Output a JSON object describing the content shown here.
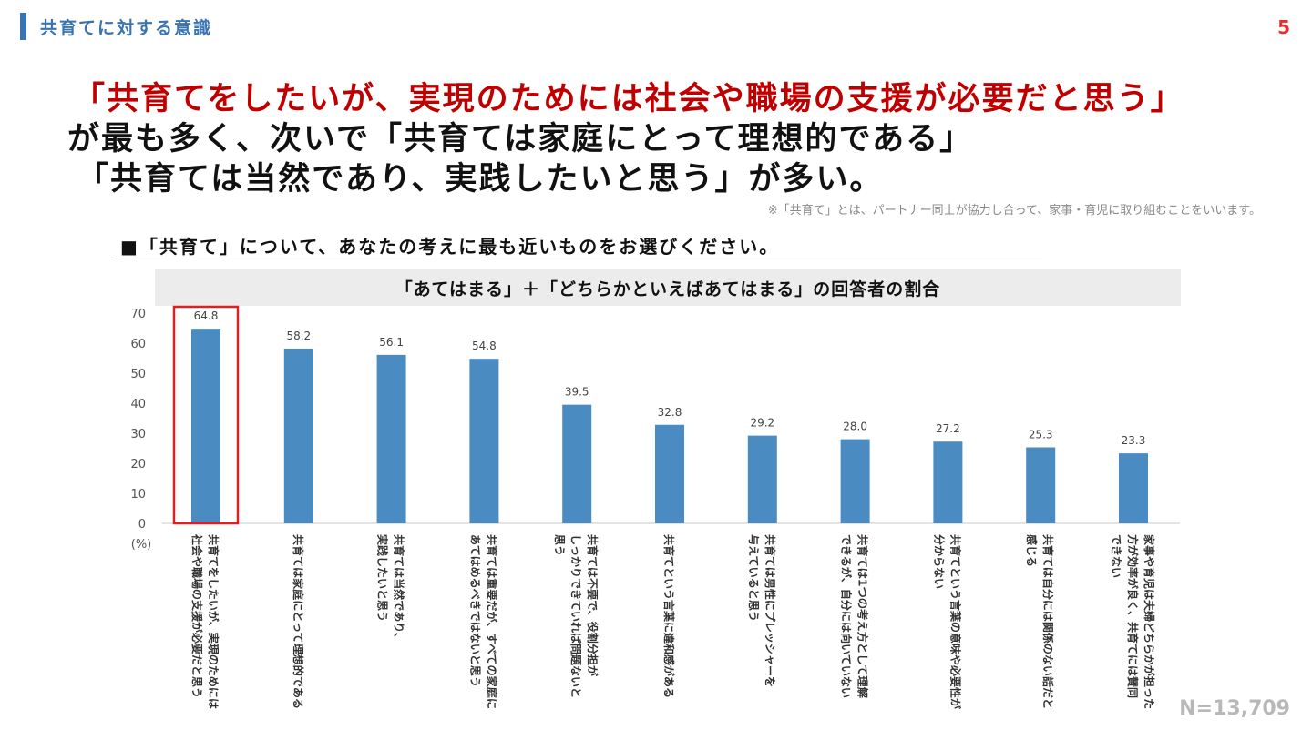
{
  "header": {
    "section_title": "共育てに対する意識",
    "page_number": "5"
  },
  "headline": {
    "line1": "「共育てをしたいが、実現のためには社会や職場の支援が必要だと思う」",
    "line2": "が最も多く、次いで「共育ては家庭にとって理想的である」",
    "line3": "「共育ては当然であり、実践したいと思う」が多い。"
  },
  "note": "※「共育て」とは、パートナー同士が協力し合って、家事・育児に取り組むことをいいます。",
  "question": "■「共育て」について、あなたの考えに最も近いものをお選びください。",
  "sample_size": "N=13,709",
  "colors": {
    "bar": "#4a8bc2",
    "highlight": "#e02020",
    "accent": "#3a74b0",
    "headline_red": "#c00000"
  },
  "chart_data": {
    "type": "bar",
    "title": "「あてはまる」＋「どちらかといえばあてはまる」の回答者の割合",
    "ylabel": "(%)",
    "ylim": [
      0,
      70
    ],
    "yticks": [
      0,
      10,
      20,
      30,
      40,
      50,
      60,
      70
    ],
    "grid": false,
    "highlight_index": 0,
    "categories": [
      [
        "共育てをしたいが、実現のためには",
        "社会や職場の支援が必要だと思う"
      ],
      [
        "共育ては家庭にとって理想的である"
      ],
      [
        "共育ては当然であり、",
        "実践したいと思う"
      ],
      [
        "共育ては重要だが、すべての家庭に",
        "あてはめるべきではないと思う"
      ],
      [
        "共育ては不要で、役割分担が",
        "しっかりできていれば問題ないと",
        "思う"
      ],
      [
        "共育てという言葉に違和感がある"
      ],
      [
        "共育ては男性にプレッシャーを",
        "与えていると思う"
      ],
      [
        "共育ては1つの考え方として理解",
        "できるが、自分には向いていない"
      ],
      [
        "共育てという言葉の意味や必要性が",
        "分からない"
      ],
      [
        "共育ては自分には関係のない話だと",
        "感じる"
      ],
      [
        "家事や育児は夫婦どちらかが担った",
        "方が効率が良く、共育てには賛同",
        "できない"
      ]
    ],
    "values": [
      64.8,
      58.2,
      56.1,
      54.8,
      39.5,
      32.8,
      29.2,
      28.0,
      27.2,
      25.3,
      23.3
    ],
    "value_labels": [
      "64.8",
      "58.2",
      "56.1",
      "54.8",
      "39.5",
      "32.8",
      "29.2",
      "28.0",
      "27.2",
      "25.3",
      "23.3"
    ]
  }
}
